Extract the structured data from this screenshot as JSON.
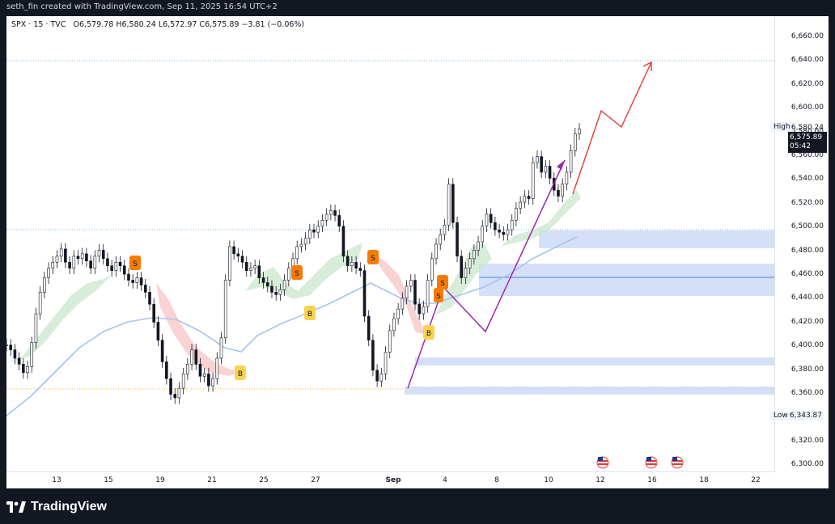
{
  "header": {
    "credit": "seth_fin created with TradingView.com, Sep 11, 2025 16:54 UTC+2"
  },
  "legend": {
    "symbol": "SPX · 15 · TVC",
    "open": "O6,579.78",
    "high": "H6,580.24",
    "low": "L6,572.97",
    "close": "C6,575.89",
    "change": "−3.81 (−0.06%)"
  },
  "price_axis": {
    "ticks": [
      "6,660.00",
      "6,640.00",
      "6,620.00",
      "6,600.00",
      "6,580.00",
      "6,560.00",
      "6,540.00",
      "6,520.00",
      "6,500.00",
      "6,480.00",
      "6,460.00",
      "6,440.00",
      "6,420.00",
      "6,400.00",
      "6,380.00",
      "6,360.00",
      "6,340.00",
      "6,320.00",
      "6,300.00"
    ],
    "high_label": "High",
    "high_value": "6,580.24",
    "current_price": "6,575.89",
    "countdown": "05:42",
    "low_label": "Low",
    "low_value": "6,343.87"
  },
  "time_axis": {
    "ticks": [
      {
        "label": "13",
        "bold": false
      },
      {
        "label": "15",
        "bold": false
      },
      {
        "label": "19",
        "bold": false
      },
      {
        "label": "21",
        "bold": false
      },
      {
        "label": "25",
        "bold": false
      },
      {
        "label": "27",
        "bold": false
      },
      {
        "label": "Sep",
        "bold": true
      },
      {
        "label": "4",
        "bold": false
      },
      {
        "label": "8",
        "bold": false
      },
      {
        "label": "10",
        "bold": false
      },
      {
        "label": "12",
        "bold": false
      },
      {
        "label": "16",
        "bold": false
      },
      {
        "label": "18",
        "bold": false
      },
      {
        "label": "22",
        "bold": false
      }
    ]
  },
  "signals": {
    "sell_label": "S",
    "buy_label": "B"
  },
  "footer": {
    "brand": "TradingView"
  },
  "colors": {
    "sell": "#f57c00",
    "buy": "#fbd34d",
    "zone": "#d5e1fa",
    "projection": "#e53935",
    "purple": "#9c27b0",
    "ema": "#a9c3ef"
  },
  "chart_data": {
    "type": "line",
    "ylim": [
      6290,
      6670
    ],
    "series": [
      {
        "values": [
          6396,
          6392,
          6385,
          6380,
          6373,
          6378,
          6398,
          6422,
          6440,
          6452,
          6460,
          6465,
          6470,
          6476,
          6465,
          6460,
          6470,
          6468,
          6472,
          6466,
          6460,
          6470,
          6475,
          6468,
          6462,
          6458,
          6465,
          6462,
          6455,
          6450,
          6448,
          6452,
          6446,
          6440,
          6430,
          6415,
          6400,
          6382,
          6368,
          6355,
          6352,
          6360,
          6372,
          6380,
          6392,
          6380,
          6370,
          6372,
          6362,
          6368,
          6385,
          6402,
          6450,
          6478,
          6472,
          6470,
          6465,
          6458,
          6460,
          6462,
          6452,
          6448,
          6445,
          6440,
          6438,
          6442,
          6450,
          6460,
          6468,
          6478,
          6480,
          6485,
          6492,
          6490,
          6495,
          6500,
          6505,
          6508,
          6504,
          6495,
          6470,
          6462,
          6465,
          6460,
          6458,
          6420,
          6400,
          6375,
          6366,
          6372,
          6390,
          6408,
          6418,
          6426,
          6435,
          6445,
          6450,
          6430,
          6422,
          6428,
          6450,
          6468,
          6480,
          6488,
          6496,
          6530,
          6498,
          6470,
          6452,
          6460,
          6468,
          6475,
          6482,
          6495,
          6505,
          6498,
          6492,
          6490,
          6488,
          6492,
          6500,
          6510,
          6515,
          6520,
          6518,
          6548,
          6553,
          6540,
          6545,
          6535,
          6525,
          6520,
          6530,
          6540,
          6558,
          6572,
          6576
        ]
      }
    ]
  }
}
